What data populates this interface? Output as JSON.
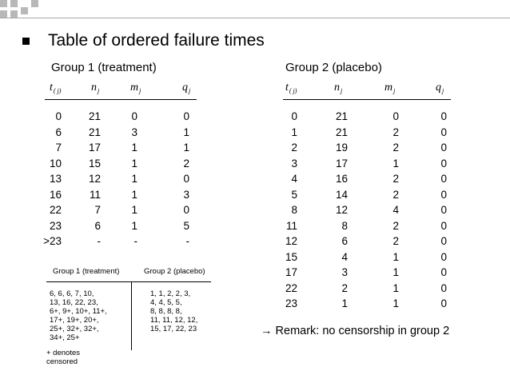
{
  "title": "Table of ordered failure times",
  "group1": {
    "label": "Group 1 (treatment)",
    "headers": [
      "t",
      "( j)",
      "n",
      "j",
      "m",
      "j",
      "q",
      "j"
    ],
    "rows": [
      [
        "0",
        "21",
        "0",
        "0"
      ],
      [
        "6",
        "21",
        "3",
        "1"
      ],
      [
        "7",
        "17",
        "1",
        "1"
      ],
      [
        "10",
        "15",
        "1",
        "2"
      ],
      [
        "13",
        "12",
        "1",
        "0"
      ],
      [
        "16",
        "11",
        "1",
        "3"
      ],
      [
        "22",
        "7",
        "1",
        "0"
      ],
      [
        "23",
        "6",
        "1",
        "5"
      ],
      [
        ">23",
        "-",
        "-",
        "-"
      ]
    ]
  },
  "group2": {
    "label": "Group 2 (placebo)",
    "headers": [
      "t",
      "( j)",
      "n",
      "j",
      "m",
      "j",
      "q",
      "j"
    ],
    "rows": [
      [
        "0",
        "21",
        "0",
        "0"
      ],
      [
        "1",
        "21",
        "2",
        "0"
      ],
      [
        "2",
        "19",
        "2",
        "0"
      ],
      [
        "3",
        "17",
        "1",
        "0"
      ],
      [
        "4",
        "16",
        "2",
        "0"
      ],
      [
        "5",
        "14",
        "2",
        "0"
      ],
      [
        "8",
        "12",
        "4",
        "0"
      ],
      [
        "11",
        "8",
        "2",
        "0"
      ],
      [
        "12",
        "6",
        "2",
        "0"
      ],
      [
        "15",
        "4",
        "1",
        "0"
      ],
      [
        "17",
        "3",
        "1",
        "0"
      ],
      [
        "22",
        "2",
        "1",
        "0"
      ],
      [
        "23",
        "1",
        "1",
        "0"
      ]
    ]
  },
  "inset": {
    "header_left": "Group 1 (treatment)",
    "header_right": "Group 2 (placebo)",
    "left_lines": [
      "6, 6, 6, 7, 10,",
      "13, 16, 22, 23,",
      "6+, 9+, 10+, 11+,",
      "17+, 19+, 20+,",
      "25+, 32+, 32+,",
      "34+, 25+"
    ],
    "right_lines": [
      "1, 1, 2, 2, 3,",
      "4, 4, 5, 5,",
      "8, 8, 8, 8,",
      "11, 11, 12, 12,",
      "15, 17, 22, 23"
    ],
    "note_lines": [
      "+ denotes",
      "censored"
    ]
  },
  "remark": "→ Remark: no censorship in group 2"
}
